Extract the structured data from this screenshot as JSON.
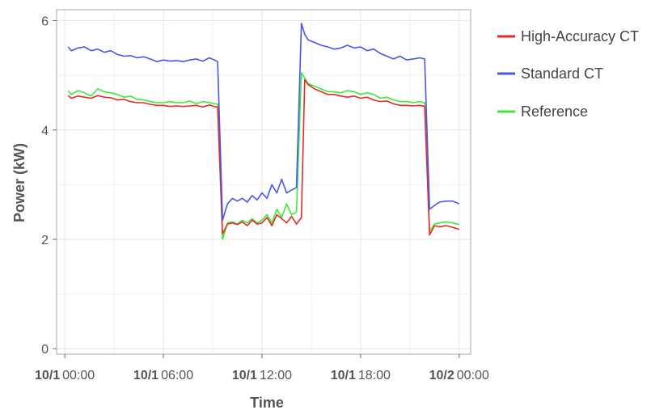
{
  "chart_data": {
    "type": "line",
    "title": "",
    "xlabel": "Time",
    "ylabel": "Power (kW)",
    "xlim": [
      -0.5,
      24.7
    ],
    "ylim": [
      -0.1,
      6.2
    ],
    "grid": true,
    "legend_position": "right",
    "x_ticks": [
      {
        "value": 0,
        "date": "10/1",
        "time": "00:00"
      },
      {
        "value": 6,
        "date": "10/1",
        "time": "06:00"
      },
      {
        "value": 12,
        "date": "10/1",
        "time": "12:00"
      },
      {
        "value": 18,
        "date": "10/1",
        "time": "18:00"
      },
      {
        "value": 24,
        "date": "10/2",
        "time": "00:00"
      }
    ],
    "y_ticks": [
      0,
      2,
      4,
      6
    ],
    "series": [
      {
        "name": "High-Accuracy CT",
        "color": "#e8282b",
        "x": [
          0.2,
          0.4,
          0.8,
          1.2,
          1.6,
          2.0,
          2.4,
          2.8,
          3.2,
          3.6,
          4.0,
          4.4,
          4.8,
          5.2,
          5.6,
          6.0,
          6.4,
          6.8,
          7.2,
          7.6,
          8.0,
          8.4,
          8.8,
          9.1,
          9.3,
          9.6,
          9.9,
          10.2,
          10.5,
          10.8,
          11.1,
          11.4,
          11.7,
          12.0,
          12.3,
          12.6,
          12.9,
          13.2,
          13.5,
          13.8,
          14.1,
          14.4,
          14.6,
          14.8,
          15.2,
          15.6,
          16.0,
          16.4,
          16.8,
          17.2,
          17.6,
          18.0,
          18.4,
          18.8,
          19.2,
          19.6,
          20.0,
          20.4,
          20.8,
          21.2,
          21.6,
          21.9,
          22.2,
          22.5,
          22.8,
          23.2,
          23.6,
          24.0
        ],
        "values": [
          4.63,
          4.58,
          4.62,
          4.6,
          4.58,
          4.63,
          4.6,
          4.59,
          4.55,
          4.56,
          4.52,
          4.5,
          4.5,
          4.47,
          4.45,
          4.45,
          4.43,
          4.44,
          4.43,
          4.44,
          4.45,
          4.42,
          4.46,
          4.43,
          4.42,
          2.1,
          2.28,
          2.3,
          2.27,
          2.32,
          2.25,
          2.35,
          2.28,
          2.3,
          2.4,
          2.25,
          2.45,
          2.38,
          2.3,
          2.42,
          2.28,
          2.4,
          4.92,
          4.83,
          4.75,
          4.7,
          4.65,
          4.65,
          4.62,
          4.6,
          4.62,
          4.58,
          4.6,
          4.55,
          4.52,
          4.53,
          4.48,
          4.45,
          4.45,
          4.44,
          4.45,
          4.43,
          2.08,
          2.25,
          2.23,
          2.25,
          2.22,
          2.18
        ]
      },
      {
        "name": "Standard CT",
        "color": "#4757ea",
        "x": [
          0.2,
          0.4,
          0.8,
          1.2,
          1.6,
          2.0,
          2.4,
          2.8,
          3.2,
          3.6,
          4.0,
          4.4,
          4.8,
          5.2,
          5.6,
          6.0,
          6.4,
          6.8,
          7.2,
          7.6,
          8.0,
          8.4,
          8.8,
          9.1,
          9.3,
          9.6,
          9.9,
          10.2,
          10.5,
          10.8,
          11.1,
          11.4,
          11.7,
          12.0,
          12.3,
          12.6,
          12.9,
          13.2,
          13.5,
          13.8,
          14.1,
          14.4,
          14.6,
          14.8,
          15.2,
          15.6,
          16.0,
          16.4,
          16.8,
          17.2,
          17.6,
          18.0,
          18.4,
          18.8,
          19.2,
          19.6,
          20.0,
          20.4,
          20.8,
          21.2,
          21.6,
          21.9,
          22.2,
          22.5,
          22.8,
          23.2,
          23.6,
          24.0
        ],
        "values": [
          5.52,
          5.45,
          5.5,
          5.52,
          5.45,
          5.48,
          5.42,
          5.45,
          5.38,
          5.35,
          5.36,
          5.32,
          5.34,
          5.3,
          5.25,
          5.28,
          5.26,
          5.27,
          5.25,
          5.28,
          5.3,
          5.26,
          5.32,
          5.28,
          5.25,
          2.35,
          2.65,
          2.75,
          2.7,
          2.75,
          2.68,
          2.8,
          2.72,
          2.85,
          2.75,
          3.0,
          2.85,
          3.1,
          2.85,
          2.9,
          2.95,
          5.95,
          5.75,
          5.65,
          5.6,
          5.55,
          5.52,
          5.48,
          5.5,
          5.55,
          5.5,
          5.52,
          5.45,
          5.48,
          5.4,
          5.35,
          5.3,
          5.35,
          5.28,
          5.3,
          5.32,
          5.3,
          2.55,
          2.62,
          2.68,
          2.7,
          2.7,
          2.65
        ]
      },
      {
        "name": "Reference",
        "color": "#3ee83a",
        "x": [
          0.2,
          0.4,
          0.8,
          1.2,
          1.6,
          2.0,
          2.4,
          2.8,
          3.2,
          3.6,
          4.0,
          4.4,
          4.8,
          5.2,
          5.6,
          6.0,
          6.4,
          6.8,
          7.2,
          7.6,
          8.0,
          8.4,
          8.8,
          9.1,
          9.3,
          9.6,
          9.9,
          10.2,
          10.5,
          10.8,
          11.1,
          11.4,
          11.7,
          12.0,
          12.3,
          12.6,
          12.9,
          13.2,
          13.5,
          13.8,
          14.1,
          14.4,
          14.6,
          14.8,
          15.2,
          15.6,
          16.0,
          16.4,
          16.8,
          17.2,
          17.6,
          18.0,
          18.4,
          18.8,
          19.2,
          19.6,
          20.0,
          20.4,
          20.8,
          21.2,
          21.6,
          21.9,
          22.2,
          22.5,
          22.8,
          23.2,
          23.6,
          24.0
        ],
        "values": [
          4.72,
          4.65,
          4.72,
          4.68,
          4.62,
          4.75,
          4.7,
          4.68,
          4.65,
          4.6,
          4.62,
          4.56,
          4.55,
          4.52,
          4.5,
          4.5,
          4.52,
          4.5,
          4.5,
          4.53,
          4.48,
          4.52,
          4.5,
          4.48,
          4.47,
          2.0,
          2.3,
          2.32,
          2.28,
          2.35,
          2.3,
          2.38,
          2.3,
          2.35,
          2.45,
          2.3,
          2.55,
          2.4,
          2.65,
          2.45,
          2.5,
          5.05,
          4.95,
          4.85,
          4.8,
          4.75,
          4.7,
          4.7,
          4.68,
          4.72,
          4.7,
          4.65,
          4.68,
          4.65,
          4.58,
          4.6,
          4.55,
          4.52,
          4.52,
          4.5,
          4.52,
          4.5,
          2.15,
          2.28,
          2.3,
          2.32,
          2.3,
          2.27
        ]
      }
    ]
  }
}
